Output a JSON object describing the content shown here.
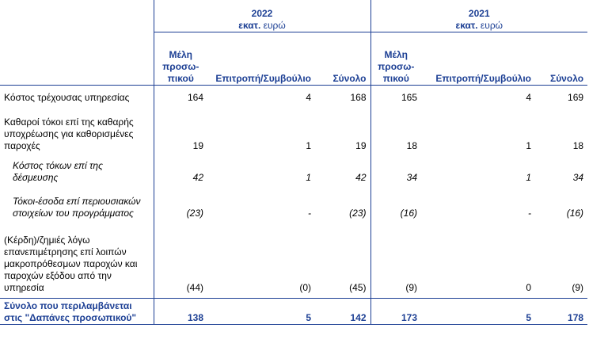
{
  "header": {
    "years": [
      {
        "year": "2022",
        "unit_bold": "εκατ.",
        "unit_rest": " ευρώ"
      },
      {
        "year": "2021",
        "unit_bold": "εκατ.",
        "unit_rest": " ευρώ"
      }
    ],
    "columns": {
      "staff": "Μέλη προσω-πικού",
      "board": "Επιτροπή/Συμβούλιο",
      "total": "Σύνολο"
    }
  },
  "rows": [
    {
      "label": "Κόστος τρέχουσας υπηρεσίας",
      "values": [
        "164",
        "4",
        "168",
        "165",
        "4",
        "169"
      ]
    },
    {
      "label": "Καθαροί τόκοι επί της καθαρής υποχρέωσης για καθορισμένες παροχές",
      "values": [
        "19",
        "1",
        "19",
        "18",
        "1",
        "18"
      ]
    },
    {
      "label": "Κόστος τόκων επί της δέσμευσης",
      "values": [
        "42",
        "1",
        "42",
        "34",
        "1",
        "34"
      ]
    },
    {
      "label": "Τόκοι-έσοδα επί περιουσιακών στοιχείων του προγράμματος",
      "values": [
        "(23)",
        "-",
        "(23)",
        "(16)",
        "-",
        "(16)"
      ]
    },
    {
      "label": "(Κέρδη)/ζημιές λόγω επανεπιμέτρησης επί λοιπών μακροπρόθεσμων παροχών και παροχών εξόδου από την υπηρεσία",
      "values": [
        "(44)",
        "(0)",
        "(45)",
        "(9)",
        "0",
        "(9)"
      ]
    }
  ],
  "total": {
    "label": "Σύνολο που περιλαμβάνεται στις \"Δαπάνες προσωπικού\"",
    "values": [
      "138",
      "5",
      "142",
      "173",
      "5",
      "178"
    ]
  }
}
